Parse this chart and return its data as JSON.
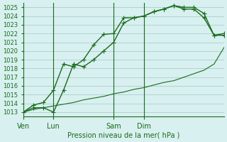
{
  "bg_color": "#d8f0f0",
  "grid_color": "#a0c8c8",
  "line_color": "#1a6b1a",
  "marker_color": "#1a6b1a",
  "xlabel": "Pression niveau de la mer( hPa )",
  "ylim": [
    1012.5,
    1025.5
  ],
  "yticks": [
    1013,
    1014,
    1015,
    1016,
    1017,
    1018,
    1019,
    1020,
    1021,
    1022,
    1023,
    1024,
    1025
  ],
  "xtick_labels": [
    "Ven",
    "Lun",
    "Sam",
    "Dim"
  ],
  "xtick_positions": [
    0,
    3,
    9,
    12
  ],
  "series1": [
    1013.0,
    1013.5,
    1013.5,
    1013.0,
    1015.5,
    1018.5,
    1018.2,
    1019.0,
    1020.0,
    1021.0,
    1023.2,
    1023.8,
    1024.0,
    1024.5,
    1024.8,
    1025.2,
    1024.8,
    1024.8,
    1023.8,
    1021.8,
    1021.8
  ],
  "series2": [
    1013.0,
    1013.8,
    1014.1,
    1015.5,
    1018.5,
    1018.2,
    1019.0,
    1020.7,
    1021.9,
    1022.0,
    1023.8,
    1023.8,
    1024.0,
    1024.5,
    1024.8,
    1025.2,
    1025.0,
    1025.0,
    1024.3,
    1021.8,
    1022.0
  ],
  "series3": [
    1013.0,
    1013.3,
    1013.5,
    1013.7,
    1013.9,
    1014.1,
    1014.4,
    1014.6,
    1014.8,
    1015.1,
    1015.3,
    1015.6,
    1015.8,
    1016.1,
    1016.4,
    1016.6,
    1017.0,
    1017.4,
    1017.8,
    1018.5,
    1020.4
  ],
  "n_points": 21,
  "vline_positions": [
    3,
    9,
    12
  ]
}
